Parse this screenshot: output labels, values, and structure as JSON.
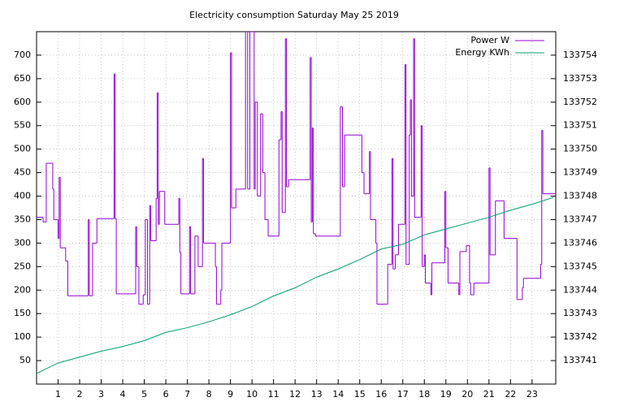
{
  "chart_data": {
    "type": "line",
    "title": "Electricity consumption Saturday May 25 2019",
    "xlim": [
      0,
      24.1
    ],
    "xticks": [
      1,
      2,
      3,
      4,
      5,
      6,
      7,
      8,
      9,
      10,
      11,
      12,
      13,
      14,
      15,
      16,
      17,
      18,
      19,
      20,
      21,
      22,
      23
    ],
    "ylim": [
      0,
      750
    ],
    "yticks": [
      50,
      100,
      150,
      200,
      250,
      300,
      350,
      400,
      450,
      500,
      550,
      600,
      650,
      700
    ],
    "y2lim": [
      133740,
      133755
    ],
    "y2ticks": [
      133741,
      133742,
      133743,
      133744,
      133745,
      133746,
      133747,
      133748,
      133749,
      133750,
      133751,
      133752,
      133753,
      133754
    ],
    "grid": true,
    "legend": "top-right",
    "series": [
      {
        "name": "Power W",
        "color": "#9400d3",
        "step": true,
        "x": [
          0,
          0.3,
          0.45,
          0.75,
          0.8,
          1.0,
          1.05,
          1.1,
          1.35,
          1.45,
          2.4,
          2.45,
          2.6,
          2.8,
          3.6,
          3.65,
          3.7,
          4.6,
          4.65,
          4.75,
          4.95,
          5.05,
          5.15,
          5.25,
          5.3,
          5.55,
          5.6,
          5.65,
          5.7,
          5.95,
          6.6,
          6.65,
          6.7,
          7.1,
          7.15,
          7.35,
          7.5,
          7.7,
          7.75,
          8.3,
          8.35,
          8.55,
          8.6,
          9.0,
          9.05,
          9.25,
          9.7,
          9.8,
          9.9,
          10.1,
          10.15,
          10.25,
          10.4,
          10.5,
          10.6,
          10.75,
          11.25,
          11.35,
          11.4,
          11.55,
          11.6,
          11.7,
          12.7,
          12.75,
          12.8,
          12.85,
          12.95,
          14.1,
          14.2,
          14.3,
          15.1,
          15.2,
          15.45,
          15.5,
          15.75,
          15.8,
          16.3,
          16.5,
          16.55,
          16.65,
          16.8,
          17.1,
          17.15,
          17.3,
          17.35,
          17.4,
          17.5,
          17.55,
          17.85,
          17.9,
          18.0,
          18.05,
          18.3,
          18.35,
          18.95,
          19.0,
          19.1,
          19.6,
          19.65,
          19.95,
          20.1,
          20.15,
          20.3,
          21.0,
          21.05,
          21.3,
          21.7,
          22.3,
          22.55,
          22.6,
          23.4,
          23.45,
          23.5
        ],
        "values": [
          355,
          345,
          470,
          415,
          350,
          310,
          440,
          290,
          262,
          188,
          350,
          188,
          300,
          352,
          660,
          352,
          192,
          335,
          250,
          170,
          190,
          350,
          170,
          380,
          305,
          395,
          620,
          340,
          410,
          340,
          395,
          280,
          192,
          335,
          192,
          315,
          250,
          480,
          300,
          250,
          170,
          200,
          300,
          705,
          375,
          415,
          750,
          415,
          750,
          415,
          600,
          400,
          575,
          450,
          350,
          315,
          520,
          580,
          365,
          735,
          420,
          435,
          695,
          345,
          545,
          320,
          315,
          590,
          420,
          530,
          450,
          405,
          495,
          350,
          300,
          170,
          255,
          480,
          245,
          275,
          340,
          680,
          255,
          530,
          605,
          400,
          735,
          355,
          550,
          250,
          275,
          215,
          190,
          258,
          410,
          290,
          215,
          190,
          282,
          295,
          215,
          190,
          215,
          460,
          275,
          390,
          310,
          180,
          205,
          225,
          255,
          540,
          405
        ]
      },
      {
        "name": "Energy KWh",
        "color": "#009e73",
        "axis": "y2",
        "x": [
          0,
          1,
          2,
          3,
          4,
          5,
          6,
          7,
          8,
          9,
          10,
          11,
          12,
          13,
          14,
          15,
          16,
          17,
          18,
          19,
          20,
          21,
          22,
          23,
          24
        ],
        "values": [
          133740.45,
          133740.9,
          133741.15,
          133741.4,
          133741.6,
          133741.85,
          133742.2,
          133742.4,
          133742.65,
          133742.95,
          133743.3,
          133743.75,
          133744.1,
          133744.55,
          133744.9,
          133745.3,
          133745.75,
          133745.95,
          133746.35,
          133746.6,
          133746.85,
          133747.1,
          133747.4,
          133747.65,
          133747.95
        ]
      }
    ]
  }
}
